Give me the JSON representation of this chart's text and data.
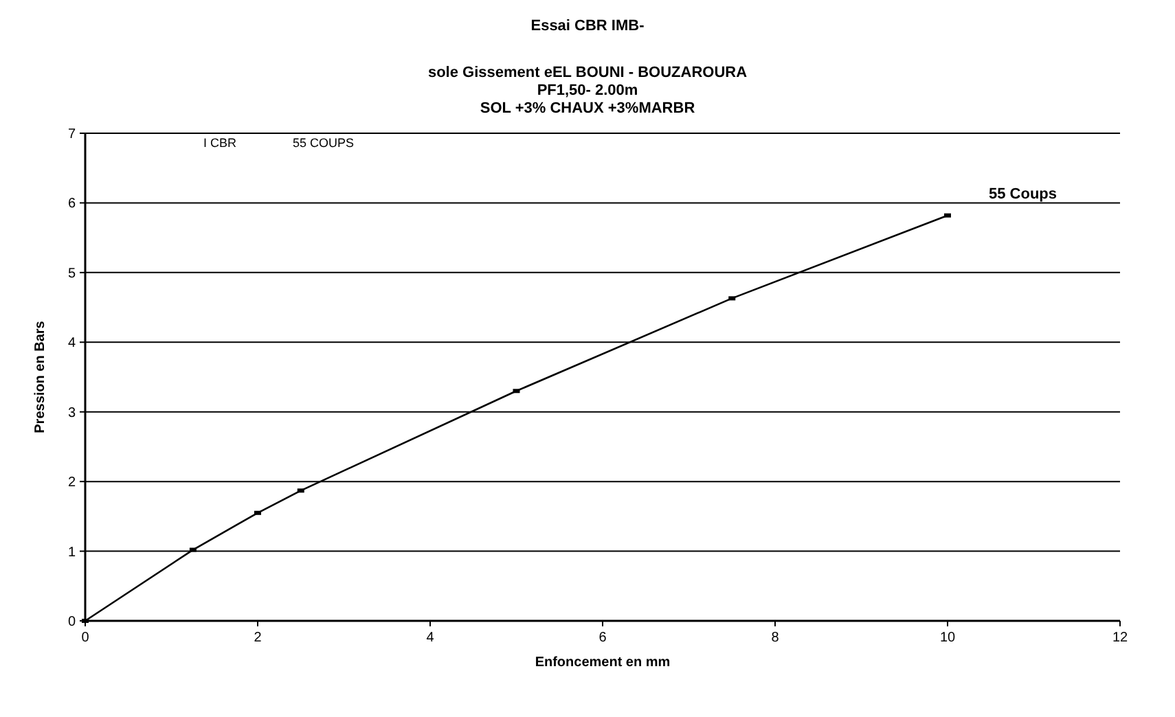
{
  "chart_data": {
    "type": "line",
    "title": "Essai  CBR IMB-",
    "subtitle": "sole Gissement eEL BOUNI - BOUZAROURA\nPF1,50- 2.00m\nSOL +3% CHAUX +3%MARBR",
    "xlabel": "Enfoncement en mm",
    "ylabel": "Pression en Bars",
    "annotations": [
      "I  CBR",
      "55 COUPS"
    ],
    "series": [
      {
        "name": "55 Coups",
        "color": "#000000",
        "x": [
          0,
          1.25,
          2,
          2.5,
          5,
          7.5,
          10
        ],
        "values": [
          0,
          1.02,
          1.55,
          1.87,
          3.3,
          4.63,
          5.82
        ]
      }
    ],
    "xlim": [
      0,
      12
    ],
    "xticks": [
      0,
      2,
      4,
      6,
      8,
      10,
      12
    ],
    "ylim": [
      0,
      7
    ],
    "yticks": [
      0,
      1,
      2,
      3,
      4,
      5,
      6,
      7
    ],
    "grid": "y",
    "marker": "square",
    "line_style": "solid"
  }
}
